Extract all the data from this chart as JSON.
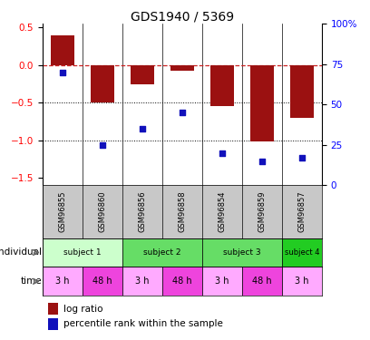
{
  "title": "GDS1940 / 5369",
  "categories": [
    "GSM96855",
    "GSM96860",
    "GSM96856",
    "GSM96858",
    "GSM96854",
    "GSM96859",
    "GSM96857"
  ],
  "log_ratio": [
    0.4,
    -0.5,
    -0.25,
    -0.07,
    -0.55,
    -1.02,
    -0.7
  ],
  "percentile_rank": [
    70,
    25,
    35,
    45,
    20,
    15,
    17
  ],
  "bar_color": "#9B1111",
  "dot_color": "#1111BB",
  "left_ylim": [
    -1.6,
    0.55
  ],
  "right_ylim": [
    0,
    100
  ],
  "left_yticks": [
    0.5,
    0.0,
    -0.5,
    -1.0,
    -1.5
  ],
  "right_yticks": [
    0,
    25,
    50,
    75,
    100
  ],
  "right_yticklabels": [
    "0",
    "25",
    "50",
    "75",
    "100%"
  ],
  "hline_color": "#CC2222",
  "dotted_lines": [
    -0.5,
    -1.0
  ],
  "subjects": [
    {
      "label": "subject 1",
      "start": 0,
      "end": 2,
      "color": "#CCFFCC"
    },
    {
      "label": "subject 2",
      "start": 2,
      "end": 4,
      "color": "#66DD66"
    },
    {
      "label": "subject 3",
      "start": 4,
      "end": 6,
      "color": "#66DD66"
    },
    {
      "label": "subject 4",
      "start": 6,
      "end": 7,
      "color": "#22CC22"
    }
  ],
  "time_labels": [
    "3 h",
    "48 h",
    "3 h",
    "48 h",
    "3 h",
    "48 h",
    "3 h"
  ],
  "time_colors": [
    "#FFAAFF",
    "#EE44DD",
    "#FFAAFF",
    "#EE44DD",
    "#FFAAFF",
    "#EE44DD",
    "#FFAAFF"
  ],
  "individual_label": "individual",
  "time_label": "time"
}
